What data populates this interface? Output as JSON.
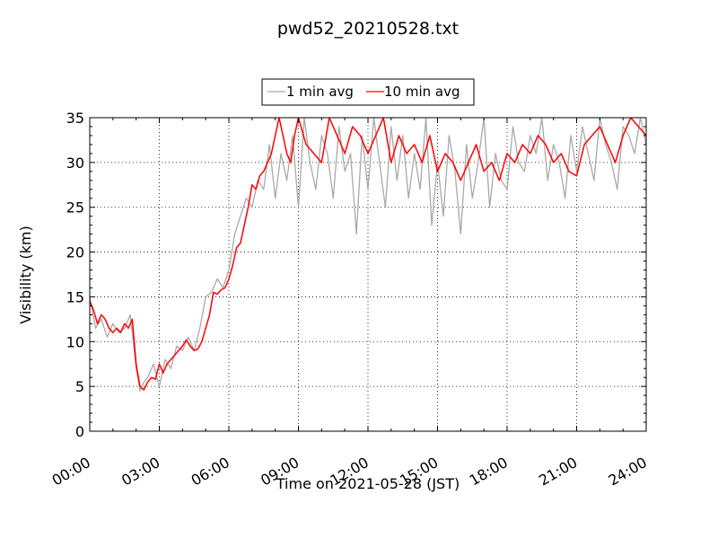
{
  "chart_data": {
    "type": "line",
    "title": "pwd52_20210528.txt",
    "xlabel": "Time on 2021-05-28 (JST)",
    "ylabel": "Visibility (km)",
    "xlim": [
      "00:00",
      "24:00"
    ],
    "ylim": [
      0,
      35
    ],
    "x_ticks": [
      "00:00",
      "03:00",
      "06:00",
      "09:00",
      "12:00",
      "15:00",
      "18:00",
      "21:00",
      "24:00"
    ],
    "y_ticks": [
      "0",
      "5",
      "10",
      "15",
      "20",
      "25",
      "30",
      "35"
    ],
    "grid": true,
    "legend_position": "top-center",
    "series": [
      {
        "name": "1 min avg",
        "color": "#a9a9a9",
        "x": [
          "00:00",
          "00:15",
          "00:30",
          "00:45",
          "01:00",
          "01:15",
          "01:30",
          "01:45",
          "02:00",
          "02:10",
          "02:20",
          "02:30",
          "02:45",
          "03:00",
          "03:15",
          "03:30",
          "03:45",
          "04:00",
          "04:15",
          "04:30",
          "04:45",
          "05:00",
          "05:15",
          "05:30",
          "05:45",
          "06:00",
          "06:15",
          "06:30",
          "06:45",
          "07:00",
          "07:15",
          "07:30",
          "07:45",
          "08:00",
          "08:15",
          "08:30",
          "08:45",
          "09:00",
          "09:15",
          "09:30",
          "09:45",
          "10:00",
          "10:15",
          "10:30",
          "10:45",
          "11:00",
          "11:15",
          "11:30",
          "11:45",
          "12:00",
          "12:15",
          "12:30",
          "12:45",
          "13:00",
          "13:15",
          "13:30",
          "13:45",
          "14:00",
          "14:15",
          "14:30",
          "14:45",
          "15:00",
          "15:15",
          "15:30",
          "15:45",
          "16:00",
          "16:15",
          "16:30",
          "16:45",
          "17:00",
          "17:15",
          "17:30",
          "17:45",
          "18:00",
          "18:15",
          "18:30",
          "18:45",
          "19:00",
          "19:15",
          "19:30",
          "19:45",
          "20:00",
          "20:15",
          "20:30",
          "20:45",
          "21:00",
          "21:15",
          "21:30",
          "21:45",
          "22:00",
          "22:15",
          "22:30",
          "22:45",
          "23:00",
          "23:15",
          "23:30",
          "23:45",
          "24:00"
        ],
        "values": [
          15,
          11.5,
          12.5,
          10.5,
          12,
          11,
          11.5,
          13,
          7,
          4.5,
          5.5,
          6,
          7.5,
          5,
          8,
          7,
          9.5,
          9,
          10.5,
          9,
          11.5,
          15,
          15.5,
          17,
          16,
          18,
          22,
          24,
          26,
          25,
          28,
          27,
          32,
          26,
          31,
          28,
          33,
          25,
          35,
          30,
          27,
          33,
          31,
          26,
          34,
          29,
          31,
          22,
          33,
          27,
          35,
          30,
          25,
          34,
          28,
          33,
          26,
          31,
          27,
          35,
          23,
          30,
          24,
          33,
          29,
          22,
          32,
          26,
          30,
          35,
          25,
          31,
          28,
          27,
          34,
          30,
          29,
          33,
          31,
          35,
          28,
          32,
          30,
          26,
          33,
          29,
          34,
          31,
          28,
          35,
          32,
          30,
          27,
          34,
          33,
          31,
          35,
          32
        ]
      },
      {
        "name": "10 min avg",
        "color": "#ff0000",
        "x": [
          "00:00",
          "00:10",
          "00:20",
          "00:30",
          "00:40",
          "00:50",
          "01:00",
          "01:10",
          "01:20",
          "01:30",
          "01:40",
          "01:50",
          "02:00",
          "02:10",
          "02:20",
          "02:30",
          "02:40",
          "02:50",
          "03:00",
          "03:10",
          "03:20",
          "03:30",
          "03:40",
          "03:50",
          "04:00",
          "04:10",
          "04:20",
          "04:30",
          "04:40",
          "04:50",
          "05:00",
          "05:10",
          "05:20",
          "05:30",
          "05:40",
          "05:50",
          "06:00",
          "06:10",
          "06:20",
          "06:30",
          "06:40",
          "06:50",
          "07:00",
          "07:10",
          "07:20",
          "07:30",
          "07:40",
          "07:50",
          "08:00",
          "08:10",
          "08:20",
          "08:30",
          "08:40",
          "08:50",
          "09:00",
          "09:20",
          "09:40",
          "10:00",
          "10:20",
          "10:40",
          "11:00",
          "11:20",
          "11:40",
          "12:00",
          "12:20",
          "12:40",
          "13:00",
          "13:20",
          "13:40",
          "14:00",
          "14:20",
          "14:40",
          "15:00",
          "15:20",
          "15:40",
          "16:00",
          "16:20",
          "16:40",
          "17:00",
          "17:20",
          "17:40",
          "18:00",
          "18:20",
          "18:40",
          "19:00",
          "19:20",
          "19:40",
          "20:00",
          "20:20",
          "20:40",
          "21:00",
          "21:20",
          "21:40",
          "22:00",
          "22:20",
          "22:40",
          "23:00",
          "23:20",
          "23:40",
          "24:00"
        ],
        "values": [
          14.5,
          13.5,
          12,
          13,
          12.5,
          11.5,
          11,
          11.5,
          11,
          12,
          11.5,
          12.5,
          7.5,
          5,
          4.6,
          5.5,
          6,
          5.8,
          7.5,
          6.5,
          7.5,
          8,
          8.5,
          9,
          9.5,
          10.2,
          9.5,
          9,
          9.2,
          10,
          11.5,
          13,
          15.5,
          15.3,
          15.8,
          16,
          17,
          18.5,
          20.5,
          21,
          23,
          25,
          27.5,
          27,
          28.5,
          29,
          30,
          31,
          33,
          35,
          33,
          31,
          30,
          33,
          35,
          32,
          31,
          30,
          35,
          33,
          31,
          34,
          33,
          31,
          33,
          35,
          30,
          33,
          31,
          32,
          30,
          33,
          29,
          31,
          30,
          28,
          30,
          32,
          29,
          30,
          28,
          31,
          30,
          32,
          31,
          33,
          32,
          30,
          31,
          29,
          28.5,
          32,
          33,
          34,
          32,
          30,
          33,
          35,
          34,
          33
        ]
      }
    ]
  }
}
